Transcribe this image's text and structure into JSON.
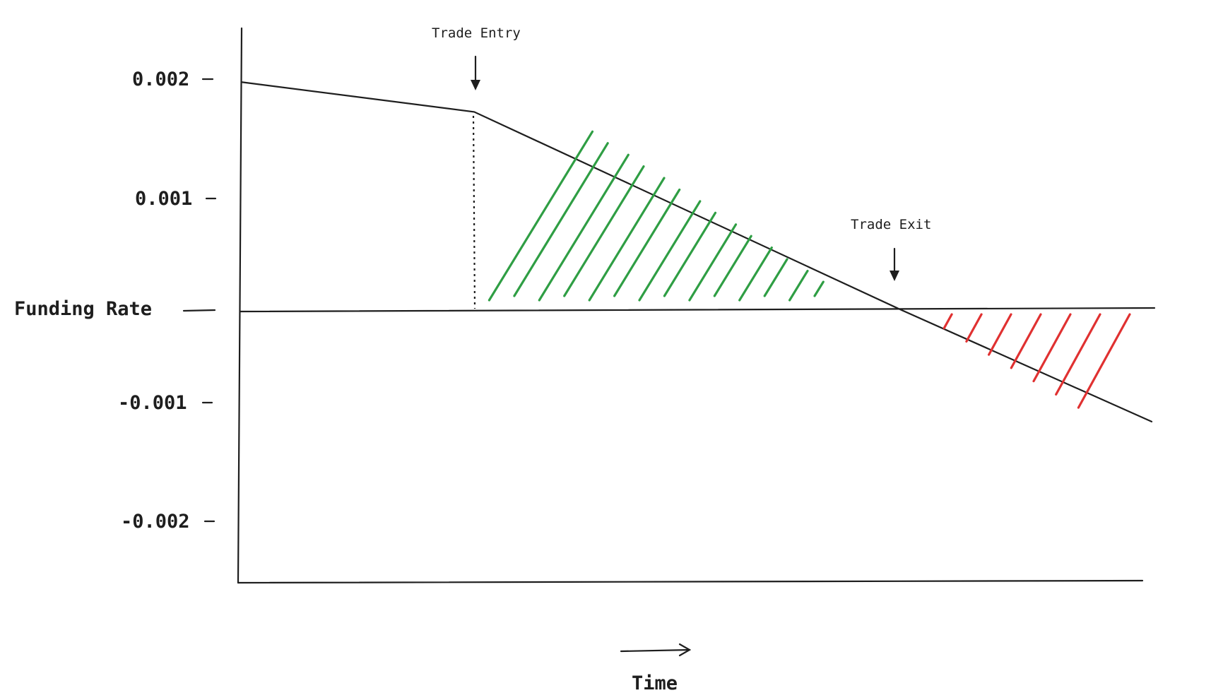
{
  "chart_data": {
    "type": "line",
    "title": "",
    "ylabel": "Funding Rate",
    "xlabel": "Time",
    "ylim": [
      -0.0023,
      0.0025
    ],
    "y_ticks": [
      "0.002",
      "0.001",
      "-0.001",
      "-0.002"
    ],
    "series": [
      {
        "name": "",
        "x": [
          0,
          0.255,
          0.725,
          1.0
        ],
        "y": [
          0.00192,
          0.00167,
          0.0,
          -0.00094
        ]
      }
    ],
    "annotations": [
      {
        "text": "Trade Entry",
        "x": 0.255
      },
      {
        "text": "Trade Exit",
        "x": 0.725
      }
    ],
    "shaded_regions": [
      {
        "from": 0.255,
        "to": 0.725,
        "sign": "positive",
        "color": "#2f9e44"
      },
      {
        "from": 0.725,
        "to": 1.0,
        "sign": "negative",
        "color": "#e03131"
      }
    ]
  }
}
